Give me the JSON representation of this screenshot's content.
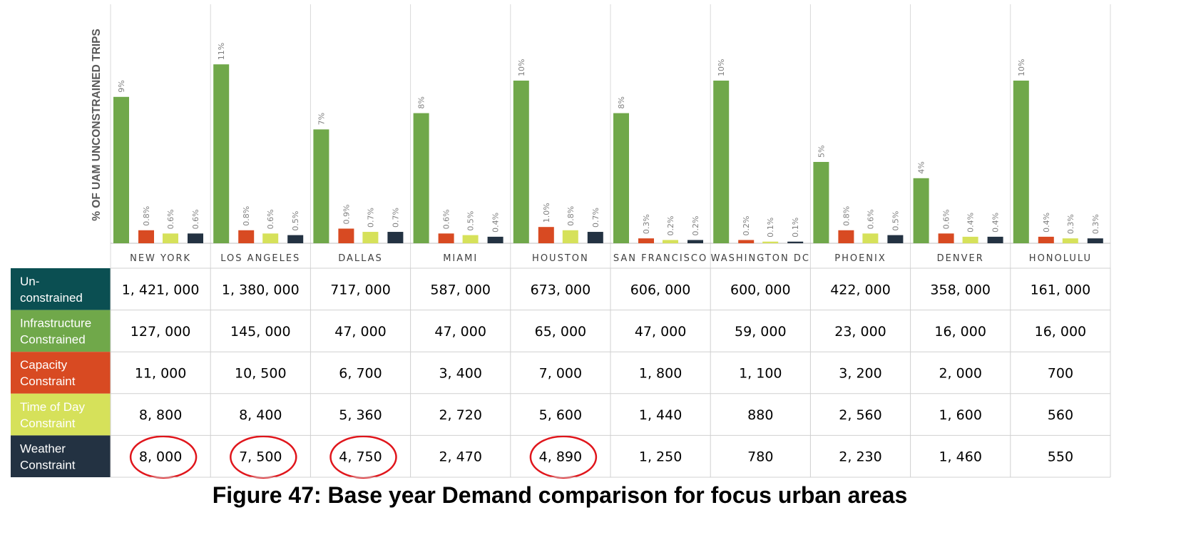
{
  "chart_data": {
    "type": "bar",
    "ylabel": "% OF UAM UNCONSTRAINED TRIPS",
    "categories": [
      "NEW YORK",
      "LOS ANGELES",
      "DALLAS",
      "MIAMI",
      "HOUSTON",
      "SAN FRANCISCO",
      "WASHINGTON DC",
      "PHOENIX",
      "DENVER",
      "HONOLULU"
    ],
    "series": [
      {
        "name": "Infrastructure Constrained",
        "color": "#70a84a",
        "values": [
          9,
          11,
          7,
          8,
          10,
          8,
          10,
          5,
          4,
          10
        ],
        "labels": [
          "9%",
          "11%",
          "7%",
          "8%",
          "10%",
          "8%",
          "10%",
          "5%",
          "4%",
          "10%"
        ]
      },
      {
        "name": "Capacity Constraint",
        "color": "#d84a22",
        "values": [
          0.8,
          0.8,
          0.9,
          0.6,
          1.0,
          0.3,
          0.2,
          0.8,
          0.6,
          0.4
        ],
        "labels": [
          "0.8%",
          "0.8%",
          "0.9%",
          "0.6%",
          "1.0%",
          "0.3%",
          "0.2%",
          "0.8%",
          "0.6%",
          "0.4%"
        ]
      },
      {
        "name": "Time of Day Constraint",
        "color": "#d6e15a",
        "values": [
          0.6,
          0.6,
          0.7,
          0.5,
          0.8,
          0.2,
          0.1,
          0.6,
          0.4,
          0.3
        ],
        "labels": [
          "0.6%",
          "0.6%",
          "0.7%",
          "0.5%",
          "0.8%",
          "0.2%",
          "0.1%",
          "0.6%",
          "0.4%",
          "0.3%"
        ]
      },
      {
        "name": "Weather Constraint",
        "color": "#233242",
        "values": [
          0.6,
          0.5,
          0.7,
          0.4,
          0.7,
          0.2,
          0.1,
          0.5,
          0.4,
          0.3
        ],
        "labels": [
          "0.6%",
          "0.5%",
          "0.7%",
          "0.4%",
          "0.7%",
          "0.2%",
          "0.1%",
          "0.5%",
          "0.4%",
          "0.3%"
        ]
      }
    ],
    "table": {
      "rows": [
        {
          "label": [
            "Un-",
            "constrained"
          ],
          "color": "#0b4f52",
          "values": [
            "1, 421, 000",
            "1, 380, 000",
            "717, 000",
            "587, 000",
            "673, 000",
            "606, 000",
            "600, 000",
            "422, 000",
            "358, 000",
            "161, 000"
          ]
        },
        {
          "label": [
            "Infrastructure",
            "Constrained"
          ],
          "color": "#70a84a",
          "values": [
            "127, 000",
            "145, 000",
            "47, 000",
            "47, 000",
            "65, 000",
            "47, 000",
            "59, 000",
            "23, 000",
            "16, 000",
            "16, 000"
          ]
        },
        {
          "label": [
            "Capacity",
            "Constraint"
          ],
          "color": "#d84a22",
          "values": [
            "11, 000",
            "10, 500",
            "6, 700",
            "3, 400",
            "7, 000",
            "1, 800",
            "1, 100",
            "3, 200",
            "2, 000",
            "700"
          ]
        },
        {
          "label": [
            "Time of Day",
            "Constraint"
          ],
          "color": "#d6e15a",
          "label_color": "#333333",
          "values": [
            "8, 800",
            "8, 400",
            "5, 360",
            "2, 720",
            "5, 600",
            "1, 440",
            "880",
            "2, 560",
            "1, 600",
            "560"
          ]
        },
        {
          "label": [
            "Weather",
            "Constraint"
          ],
          "color": "#233242",
          "values": [
            "8, 000",
            "7, 500",
            "4, 750",
            "2, 470",
            "4, 890",
            "1, 250",
            "780",
            "2, 230",
            "1, 460",
            "550"
          ],
          "circled": [
            0,
            1,
            2,
            4
          ]
        }
      ]
    },
    "annotation_color": "#e0161c"
  },
  "caption": "Figure 47: Base year Demand comparison for focus urban areas"
}
